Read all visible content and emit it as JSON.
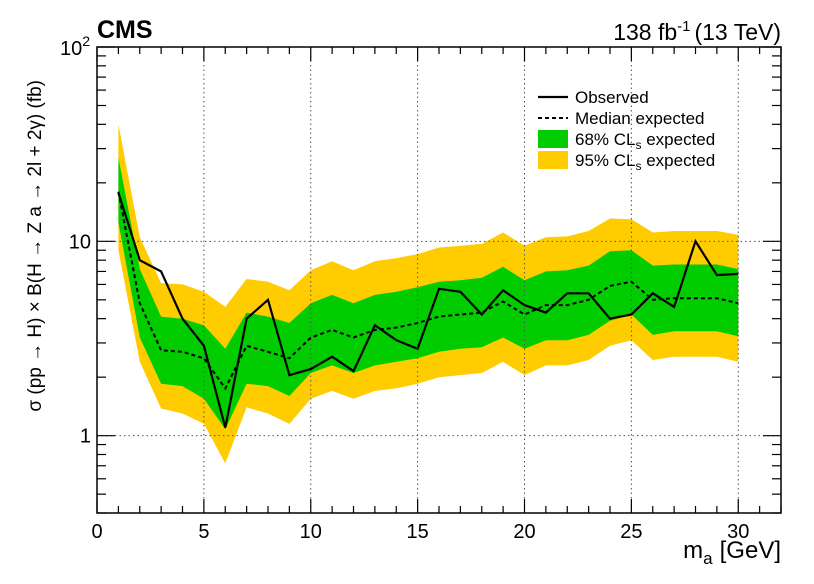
{
  "chart_data": {
    "type": "line",
    "experiment": "CMS",
    "luminosity_label": "138 fb",
    "luminosity_exponent": "-1",
    "energy_label": "(13 TeV)",
    "xlabel": "m",
    "xlabel_sub": "a",
    "xlabel_unit": "[GeV]",
    "ylabel": "σ (pp → H) × B(H → Z a → 2l + 2γ) (fb)",
    "xlim": [
      0,
      32
    ],
    "ylim": [
      0.4,
      100
    ],
    "yscale": "log",
    "x_ticks": [
      0,
      5,
      10,
      15,
      20,
      25,
      30
    ],
    "y_tick_labels": [
      {
        "value": 1,
        "text": "1"
      },
      {
        "value": 10,
        "text": "10"
      },
      {
        "value": 100,
        "base": "10",
        "exp": "2"
      }
    ],
    "grid": true,
    "legend": {
      "position": "top-right",
      "entries": [
        {
          "key": "observed",
          "label": "Observed"
        },
        {
          "key": "expected",
          "label": "Median expected"
        },
        {
          "key": "band68",
          "label_pre": "68% CL",
          "label_sub": "s",
          "label_post": " expected"
        },
        {
          "key": "band95",
          "label_pre": "95% CL",
          "label_sub": "s",
          "label_post": " expected"
        }
      ]
    },
    "colors": {
      "band68": "#00cc00",
      "band95": "#ffcc00",
      "line": "#000000",
      "grid": "#555555"
    },
    "x": [
      1,
      2,
      3,
      4,
      5,
      6,
      7,
      8,
      9,
      10,
      11,
      12,
      13,
      14,
      15,
      16,
      17,
      18,
      19,
      20,
      21,
      22,
      23,
      24,
      25,
      26,
      27,
      28,
      29,
      30
    ],
    "series": [
      {
        "name": "Observed",
        "style": "solid",
        "values": [
          17.8,
          8.0,
          7.0,
          4.0,
          2.9,
          1.1,
          4.0,
          5.0,
          2.05,
          2.2,
          2.55,
          2.15,
          3.7,
          3.1,
          2.8,
          5.7,
          5.5,
          4.2,
          5.6,
          4.7,
          4.3,
          5.4,
          5.4,
          4.0,
          4.2,
          5.4,
          4.6,
          10.0,
          6.7,
          6.8
        ]
      },
      {
        "name": "Median expected",
        "style": "dashed",
        "values": [
          18.0,
          4.8,
          2.75,
          2.7,
          2.5,
          1.75,
          2.9,
          2.7,
          2.5,
          3.2,
          3.5,
          3.2,
          3.5,
          3.6,
          3.8,
          4.1,
          4.2,
          4.3,
          4.9,
          4.2,
          4.7,
          4.7,
          5.0,
          5.9,
          6.2,
          5.0,
          5.1,
          5.1,
          5.1,
          4.8
        ]
      }
    ],
    "bands": {
      "band68": {
        "lower": [
          12.5,
          3.2,
          1.85,
          1.8,
          1.55,
          1.08,
          1.85,
          1.8,
          1.6,
          2.1,
          2.3,
          2.1,
          2.3,
          2.4,
          2.5,
          2.7,
          2.8,
          2.85,
          3.2,
          2.8,
          3.1,
          3.1,
          3.3,
          3.9,
          4.2,
          3.3,
          3.45,
          3.45,
          3.45,
          3.25
        ],
        "upper": [
          27.0,
          7.2,
          4.1,
          4.0,
          3.7,
          2.8,
          4.3,
          4.1,
          3.8,
          4.8,
          5.3,
          4.8,
          5.3,
          5.5,
          5.8,
          6.2,
          6.3,
          6.5,
          7.4,
          6.3,
          7.0,
          7.1,
          7.5,
          8.9,
          9.0,
          7.5,
          7.6,
          7.6,
          7.6,
          7.2
        ]
      },
      "band95": {
        "lower": [
          9.0,
          2.4,
          1.38,
          1.3,
          1.15,
          0.72,
          1.4,
          1.3,
          1.15,
          1.55,
          1.7,
          1.55,
          1.7,
          1.75,
          1.85,
          2.0,
          2.05,
          2.1,
          2.4,
          2.05,
          2.3,
          2.3,
          2.45,
          2.9,
          3.1,
          2.45,
          2.55,
          2.55,
          2.55,
          2.4
        ],
        "upper": [
          40.0,
          10.5,
          6.1,
          6.0,
          5.5,
          4.6,
          6.4,
          6.2,
          5.6,
          7.1,
          7.9,
          7.1,
          7.9,
          8.2,
          8.6,
          9.3,
          9.5,
          9.7,
          11.1,
          9.5,
          10.5,
          10.6,
          11.3,
          13.1,
          13.0,
          11.1,
          11.3,
          11.3,
          11.3,
          10.8
        ]
      }
    }
  }
}
